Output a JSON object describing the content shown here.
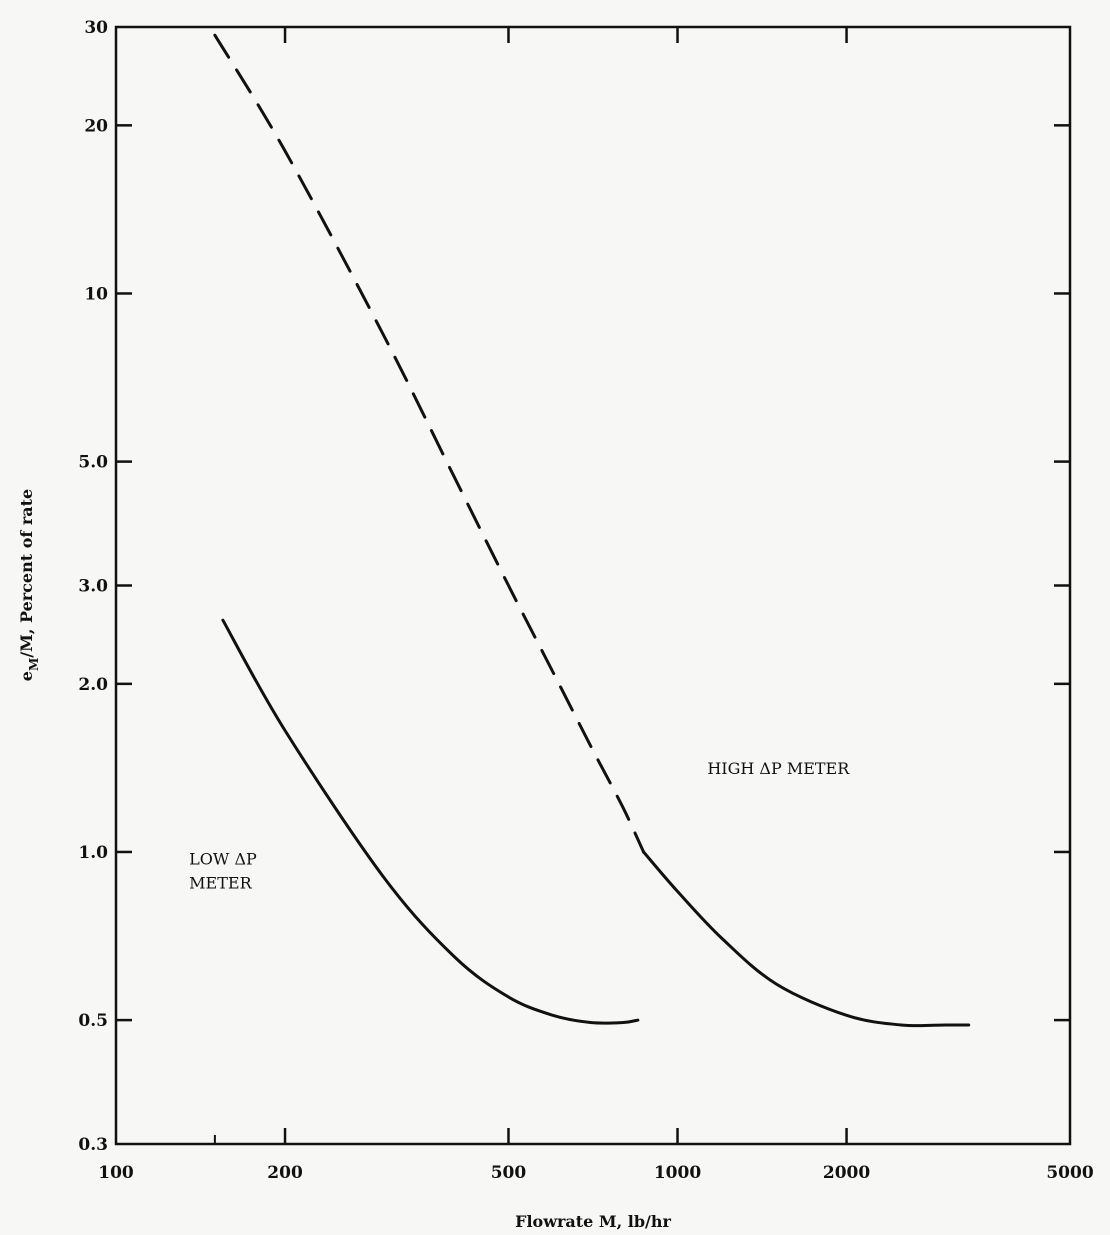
{
  "chart_data": {
    "type": "line",
    "title": "",
    "xlabel": "Flowrate M, lb/hr",
    "ylabel_main": "e",
    "ylabel_sub": "M",
    "ylabel_rest": "/M, Percent of rate",
    "x_scale": "log",
    "y_scale": "log",
    "xlim": [
      100,
      5000
    ],
    "ylim": [
      0.3,
      30
    ],
    "x_ticks": [
      100,
      200,
      500,
      1000,
      2000,
      5000
    ],
    "x_tick_labels": [
      "100",
      "200",
      "500",
      "1000",
      "2000",
      "5000"
    ],
    "y_ticks": [
      0.3,
      0.5,
      1.0,
      2.0,
      3.0,
      5.0,
      10,
      20,
      30
    ],
    "y_tick_labels": [
      "0.3",
      "0.5",
      "1.0",
      "2.0",
      "3.0",
      "5.0",
      "10",
      "20",
      "30"
    ],
    "grid": false,
    "series": [
      {
        "style": "solid",
        "x": [
          155,
          200,
          300,
          400,
          500,
          600,
          700,
          800,
          850
        ],
        "y": [
          2.6,
          1.65,
          0.9,
          0.65,
          0.55,
          0.51,
          0.495,
          0.495,
          0.5
        ]
      },
      {
        "style": "dashed",
        "x": [
          150,
          200,
          300,
          400,
          500,
          600,
          700,
          800,
          870
        ],
        "y": [
          29,
          18,
          8.4,
          4.7,
          3.0,
          2.1,
          1.55,
          1.2,
          1.0
        ]
      },
      {
        "style": "solid",
        "x": [
          870,
          1000,
          1200,
          1500,
          2000,
          2500,
          3000,
          3300
        ],
        "y": [
          1.0,
          0.85,
          0.7,
          0.58,
          0.51,
          0.49,
          0.49,
          0.49
        ]
      }
    ],
    "annotations": [
      {
        "lines": [
          "LOW ΔP",
          "METER"
        ],
        "x": 135,
        "y": 0.95
      },
      {
        "lines": [
          "HIGH ΔP METER"
        ],
        "x": 1130,
        "y": 1.38
      }
    ]
  }
}
